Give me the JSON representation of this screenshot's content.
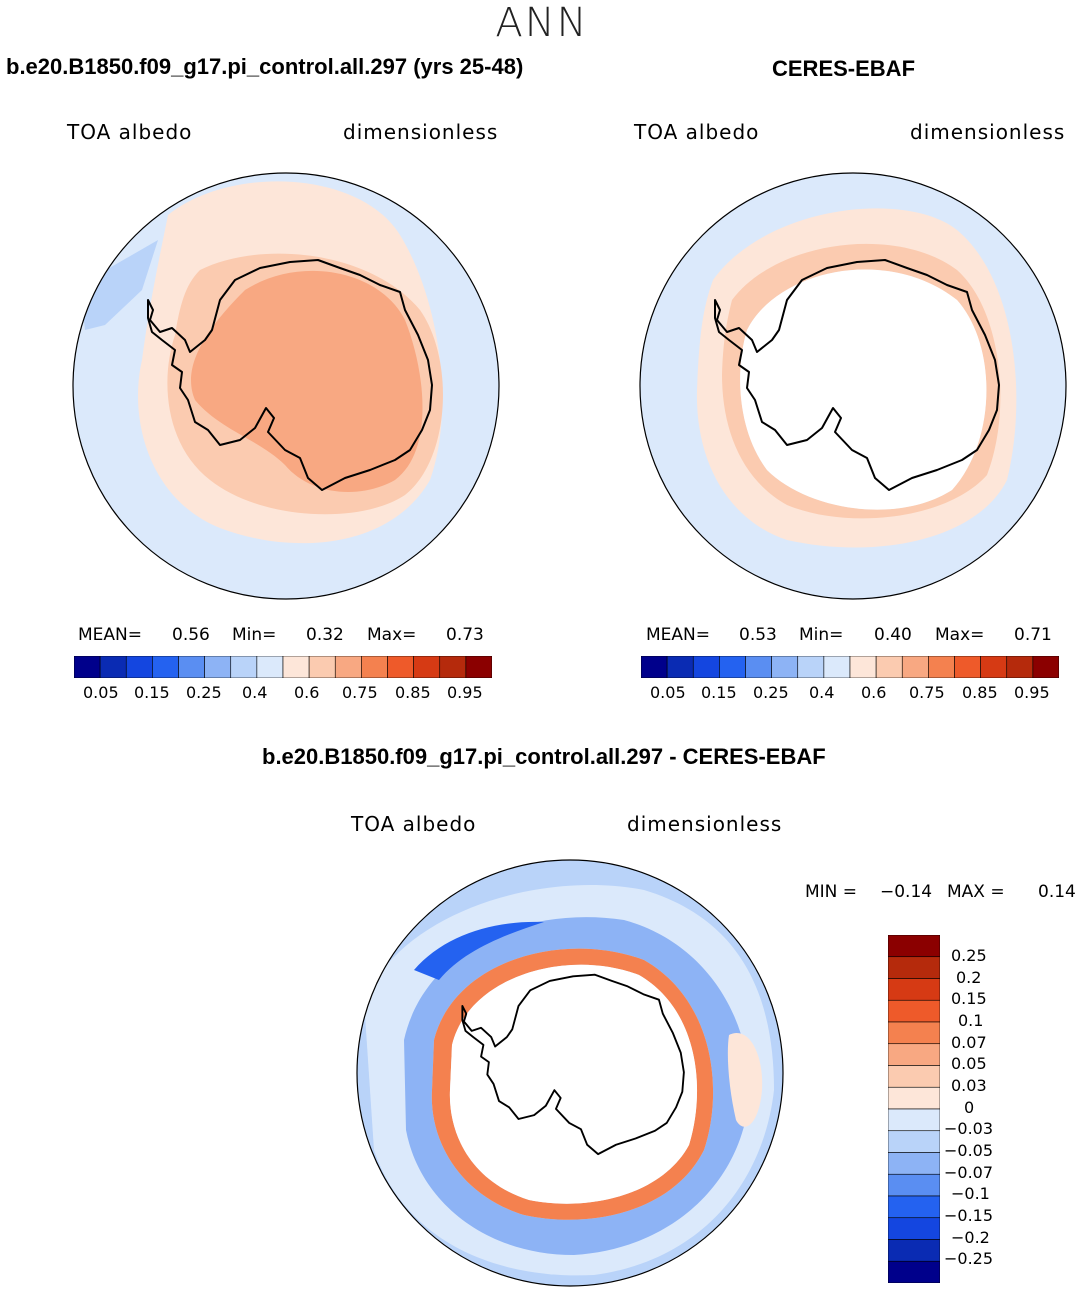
{
  "season": "ANN",
  "colors": {
    "level_palette": [
      "#00008b",
      "#0a2bb3",
      "#1446e0",
      "#2462f0",
      "#5a8ef2",
      "#8db3f5",
      "#b9d3f9",
      "#dbe9fb",
      "#fde6d9",
      "#fbcbb0",
      "#f8a882",
      "#f4814f",
      "#ee5a2a",
      "#d63a14",
      "#b52a0c",
      "#8b0000"
    ],
    "coast": "#000000",
    "land_white": "#ffffff"
  },
  "chart_data": [
    {
      "type": "heatmap",
      "panel": "model",
      "title": "b.e20.B1850.f09_g17.pi_control.all.297 (yrs 25-48)",
      "left_label": "TOA albedo",
      "right_label": "dimensionless",
      "stats": {
        "mean_label": "MEAN=",
        "mean": "0.56",
        "min_label": "Min=",
        "min": "0.32",
        "max_label": "Max=",
        "max": "0.73"
      },
      "colorbar_ticks": [
        "0.05",
        "0.15",
        "0.25",
        "0.4",
        "0.6",
        "0.75",
        "0.85",
        "0.95"
      ],
      "levels": [
        0.05,
        0.1,
        0.15,
        0.2,
        0.25,
        0.3,
        0.4,
        0.5,
        0.6,
        0.65,
        0.75,
        0.8,
        0.85,
        0.9,
        0.95
      ]
    },
    {
      "type": "heatmap",
      "panel": "obs",
      "title": "CERES-EBAF",
      "left_label": "TOA albedo",
      "right_label": "dimensionless",
      "stats": {
        "mean_label": "MEAN=",
        "mean": "0.53",
        "min_label": "Min=",
        "min": "0.40",
        "max_label": "Max=",
        "max": "0.71"
      },
      "colorbar_ticks": [
        "0.05",
        "0.15",
        "0.25",
        "0.4",
        "0.6",
        "0.75",
        "0.85",
        "0.95"
      ],
      "levels": [
        0.05,
        0.1,
        0.15,
        0.2,
        0.25,
        0.3,
        0.4,
        0.5,
        0.6,
        0.65,
        0.75,
        0.8,
        0.85,
        0.9,
        0.95
      ]
    },
    {
      "type": "heatmap",
      "panel": "diff",
      "title": "b.e20.B1850.f09_g17.pi_control.all.297 - CERES-EBAF",
      "left_label": "TOA albedo",
      "right_label": "dimensionless",
      "stats": {
        "min_label": "MIN =",
        "min": "−0.14",
        "max_label": "MAX =",
        "max": "0.14"
      },
      "colorbar_ticks": [
        "0.25",
        "0.2",
        "0.15",
        "0.1",
        "0.07",
        "0.05",
        "0.03",
        "0",
        "−0.03",
        "−0.05",
        "−0.07",
        "−0.1",
        "−0.15",
        "−0.2",
        "−0.25"
      ]
    }
  ]
}
